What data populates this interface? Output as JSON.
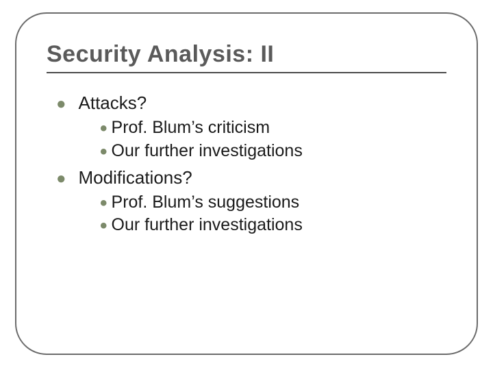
{
  "slide": {
    "title": "Security Analysis: II",
    "title_color": "#5a5a5a",
    "title_fontsize": 34,
    "frame_border_color": "#6b6b6b",
    "frame_border_radius": 46,
    "rule_color": "#4a4a4a",
    "background_color": "#ffffff",
    "bullet_primary_color": "#7c8a6a",
    "bullet_secondary_color": "#7c8a6a",
    "body_text_color": "#1a1a1a",
    "body_fontsize_l1": 26,
    "body_fontsize_l2": 25,
    "items": [
      {
        "label": "Attacks?",
        "children": [
          {
            "label": "Prof. Blum’s criticism"
          },
          {
            "label": "Our further investigations"
          }
        ]
      },
      {
        "label": "Modifications?",
        "children": [
          {
            "label": "Prof. Blum’s suggestions"
          },
          {
            "label": "Our further investigations"
          }
        ]
      }
    ]
  }
}
